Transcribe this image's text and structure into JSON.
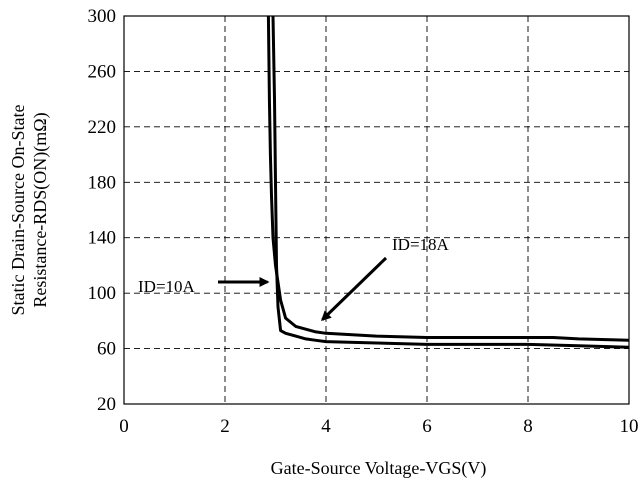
{
  "chart_data": {
    "type": "line",
    "title": "",
    "xlabel": "Gate-Source Voltage-VGS(V)",
    "ylabel_lines": [
      "Static Drain-Source On-State",
      "Resistance-RDS(ON)(mΩ)"
    ],
    "xlim": [
      0,
      10
    ],
    "ylim": [
      20,
      300
    ],
    "x_ticks": [
      "0",
      "2",
      "4",
      "6",
      "8",
      "10"
    ],
    "y_ticks": [
      "20",
      "60",
      "100",
      "140",
      "180",
      "220",
      "260",
      "300"
    ],
    "grid": true,
    "series": [
      {
        "name": "ID=10A",
        "x": [
          2.95,
          2.98,
          3.0,
          3.02,
          3.05,
          3.1,
          3.2,
          3.4,
          3.6,
          3.8,
          4.0,
          5.0,
          6.0,
          7.0,
          8.0,
          9.0,
          10.0
        ],
        "y": [
          300,
          240,
          180,
          120,
          90,
          73,
          71,
          69,
          67,
          66,
          65,
          64,
          63,
          63,
          63,
          62,
          61
        ]
      },
      {
        "name": "ID=18A",
        "x": [
          2.86,
          2.88,
          2.9,
          2.92,
          2.95,
          3.0,
          3.1,
          3.2,
          3.4,
          3.6,
          3.8,
          4.0,
          5.0,
          6.0,
          7.0,
          8.0,
          8.5,
          9.0,
          10.0
        ],
        "y": [
          300,
          240,
          200,
          170,
          140,
          120,
          95,
          82,
          76,
          74,
          72,
          71,
          69,
          68,
          68,
          68,
          68,
          67,
          66
        ]
      }
    ],
    "annotations": [
      {
        "text": "ID=10A",
        "target_x": 3.0,
        "target_y": 110
      },
      {
        "text": "ID=18A",
        "target_x": 3.85,
        "target_y": 78
      }
    ]
  }
}
